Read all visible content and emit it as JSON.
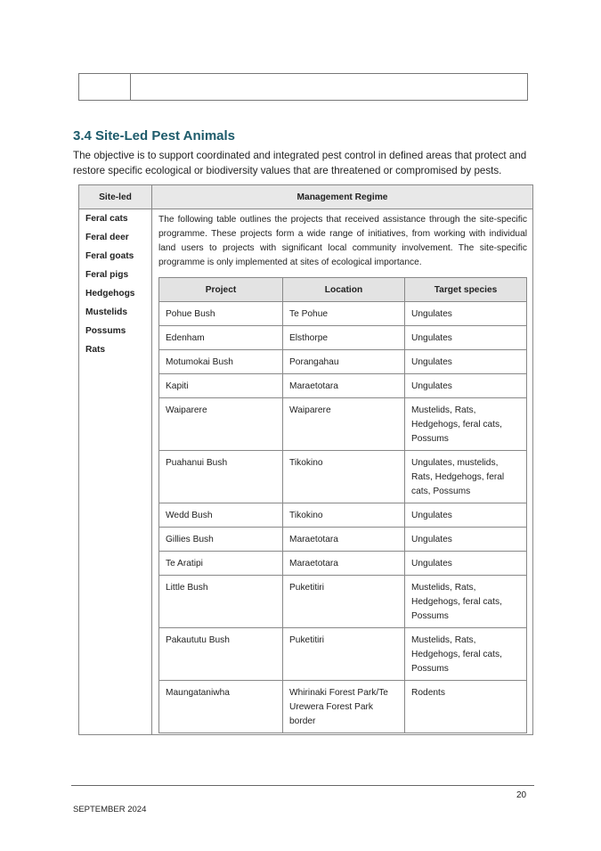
{
  "section": {
    "heading": "3.4  Site-Led Pest Animals",
    "intro": "The objective is to support coordinated and integrated pest control in defined areas that protect and restore specific ecological or biodiversity values that are threatened or compromised by pests."
  },
  "table": {
    "headers": [
      "Site-led",
      "Management Regime"
    ],
    "species": [
      "Feral cats",
      "Feral deer",
      "Feral goats",
      "Feral pigs",
      "Hedgehogs",
      "Mustelids",
      "Possums",
      "Rats"
    ],
    "paragraph": "The following table outlines the projects that received assistance through the site-specific programme. These projects form a wide range of initiatives, from working with individual land users to projects with significant local community involvement. The site-specific programme is only implemented at sites of ecological importance.",
    "inner_headers": [
      "Project",
      "Location",
      "Target species"
    ],
    "rows": [
      [
        "Pohue Bush",
        "Te Pohue",
        "Ungulates"
      ],
      [
        "Edenham",
        "Elsthorpe",
        "Ungulates"
      ],
      [
        "Motumokai Bush",
        "Porangahau",
        "Ungulates"
      ],
      [
        "Kapiti",
        "Maraetotara",
        "Ungulates"
      ],
      [
        "Waiparere",
        "Waiparere",
        "Mustelids, Rats, Hedgehogs, feral cats, Possums"
      ],
      [
        "Puahanui Bush",
        "Tikokino",
        "Ungulates, mustelids, Rats, Hedgehogs, feral cats, Possums"
      ],
      [
        "Wedd Bush",
        "Tikokino",
        "Ungulates"
      ],
      [
        "Gillies Bush",
        "Maraetotara",
        "Ungulates"
      ],
      [
        "Te Aratipi",
        "Maraetotara",
        "Ungulates"
      ],
      [
        "Little Bush",
        "Puketitiri",
        "Mustelids, Rats, Hedgehogs, feral cats, Possums"
      ],
      [
        "Pakaututu Bush",
        "Puketitiri",
        "Mustelids, Rats, Hedgehogs, feral cats, Possums"
      ],
      [
        "Maungataniwha",
        "Whirinaki Forest Park/Te Urewera Forest Park border",
        "Rodents"
      ]
    ]
  },
  "footer": {
    "page": "20",
    "date": "SEPTEMBER 2024"
  }
}
